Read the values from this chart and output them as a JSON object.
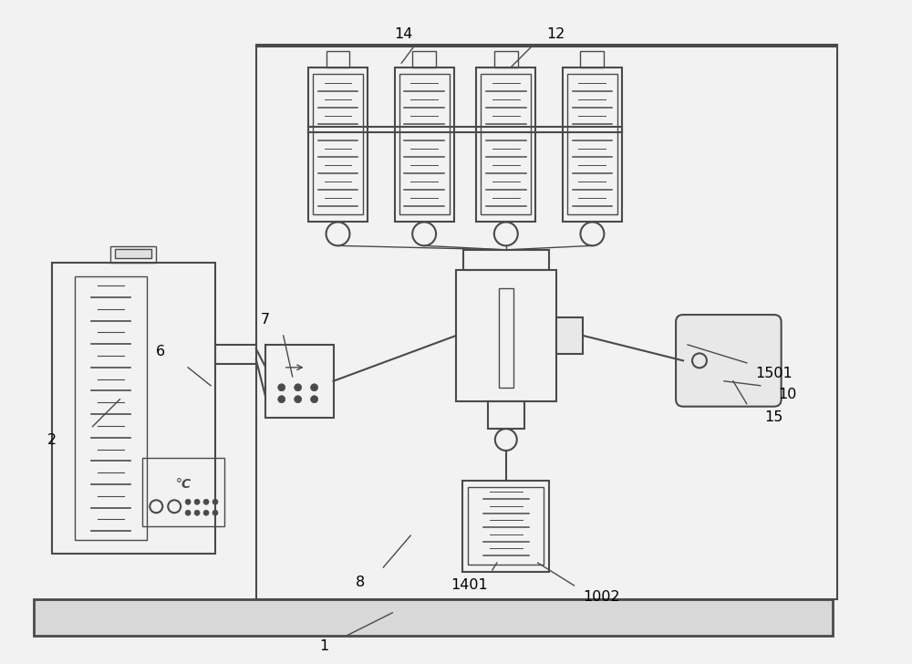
{
  "bg_color": "#f2f2f2",
  "line_color": "#4a4a4a",
  "line_width": 1.5,
  "lw_thin": 1.0,
  "lw_thick": 2.0
}
